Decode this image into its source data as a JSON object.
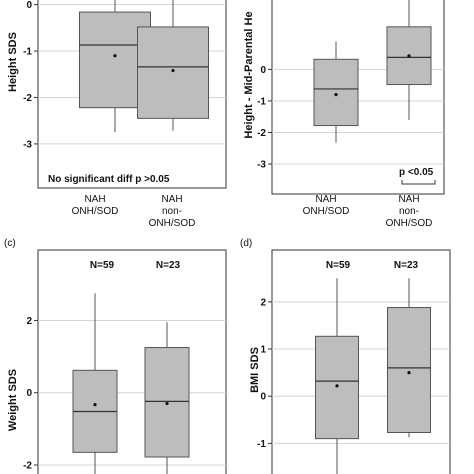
{
  "chart_data": [
    {
      "type": "box",
      "ylabel": "Height SDS",
      "yticks": [
        0,
        -1,
        -2,
        -3
      ],
      "ylim": [
        -3.95,
        0.1
      ],
      "categories": [
        [
          "NAH",
          "ONH/SOD"
        ],
        [
          "NAH",
          "non-",
          "ONH/SOD"
        ]
      ],
      "boxes": [
        {
          "q1": -2.22,
          "median": -0.87,
          "q3": -0.16,
          "whisker_low": -2.75,
          "whisker_high": 0.1,
          "mean": -1.1
        },
        {
          "q1": -2.45,
          "median": -1.34,
          "q3": -0.48,
          "whisker_low": -2.72,
          "whisker_high": 0.1,
          "mean": -1.42
        }
      ],
      "annotation": "No significant diff  p  >0.05",
      "grid": true
    },
    {
      "type": "box",
      "ylabel": "Height - Mid-Parental Height SDS",
      "ylabel_visible": "Height - Mid-Parental He",
      "yticks": [
        0,
        -1,
        -2,
        -3
      ],
      "ylim": [
        -3.95,
        2.2
      ],
      "categories": [
        [
          "NAH",
          "ONH/SOD"
        ],
        [
          "NAH",
          "non-",
          "ONH/SOD"
        ]
      ],
      "boxes": [
        {
          "q1": -1.78,
          "median": -0.62,
          "q3": 0.32,
          "whisker_low": -2.32,
          "whisker_high": 0.88,
          "mean": -0.8
        },
        {
          "q1": -0.48,
          "median": 0.38,
          "q3": 1.35,
          "whisker_low": -1.6,
          "whisker_high": 2.2,
          "mean": 0.43
        }
      ],
      "annotation": "p  <0.05",
      "grid": true
    },
    {
      "type": "box",
      "panel_label": "(c)",
      "ylabel": "Weight SDS",
      "yticks": [
        2,
        0,
        -2
      ],
      "ylim": [
        -2.25,
        3.95
      ],
      "categories": [
        "N=59",
        "N=23"
      ],
      "boxes": [
        {
          "q1": -1.65,
          "median": -0.52,
          "q3": 0.62,
          "whisker_low": -2.3,
          "whisker_high": 2.75,
          "mean": -0.33
        },
        {
          "q1": -1.78,
          "median": -0.24,
          "q3": 1.25,
          "whisker_low": -2.3,
          "whisker_high": 1.95,
          "mean": -0.3
        }
      ],
      "grid": true
    },
    {
      "type": "box",
      "panel_label": "(d)",
      "ylabel": "BMI SDS",
      "yticks": [
        2,
        1,
        0,
        -1
      ],
      "ylim": [
        -1.65,
        3.1
      ],
      "categories": [
        "N=59",
        "N=23"
      ],
      "boxes": [
        {
          "q1": -0.9,
          "median": 0.32,
          "q3": 1.27,
          "whisker_low": -1.7,
          "whisker_high": 2.5,
          "mean": 0.22
        },
        {
          "q1": -0.77,
          "median": 0.6,
          "q3": 1.88,
          "whisker_low": -0.87,
          "whisker_high": 2.5,
          "mean": 0.5
        }
      ],
      "grid": true
    }
  ]
}
